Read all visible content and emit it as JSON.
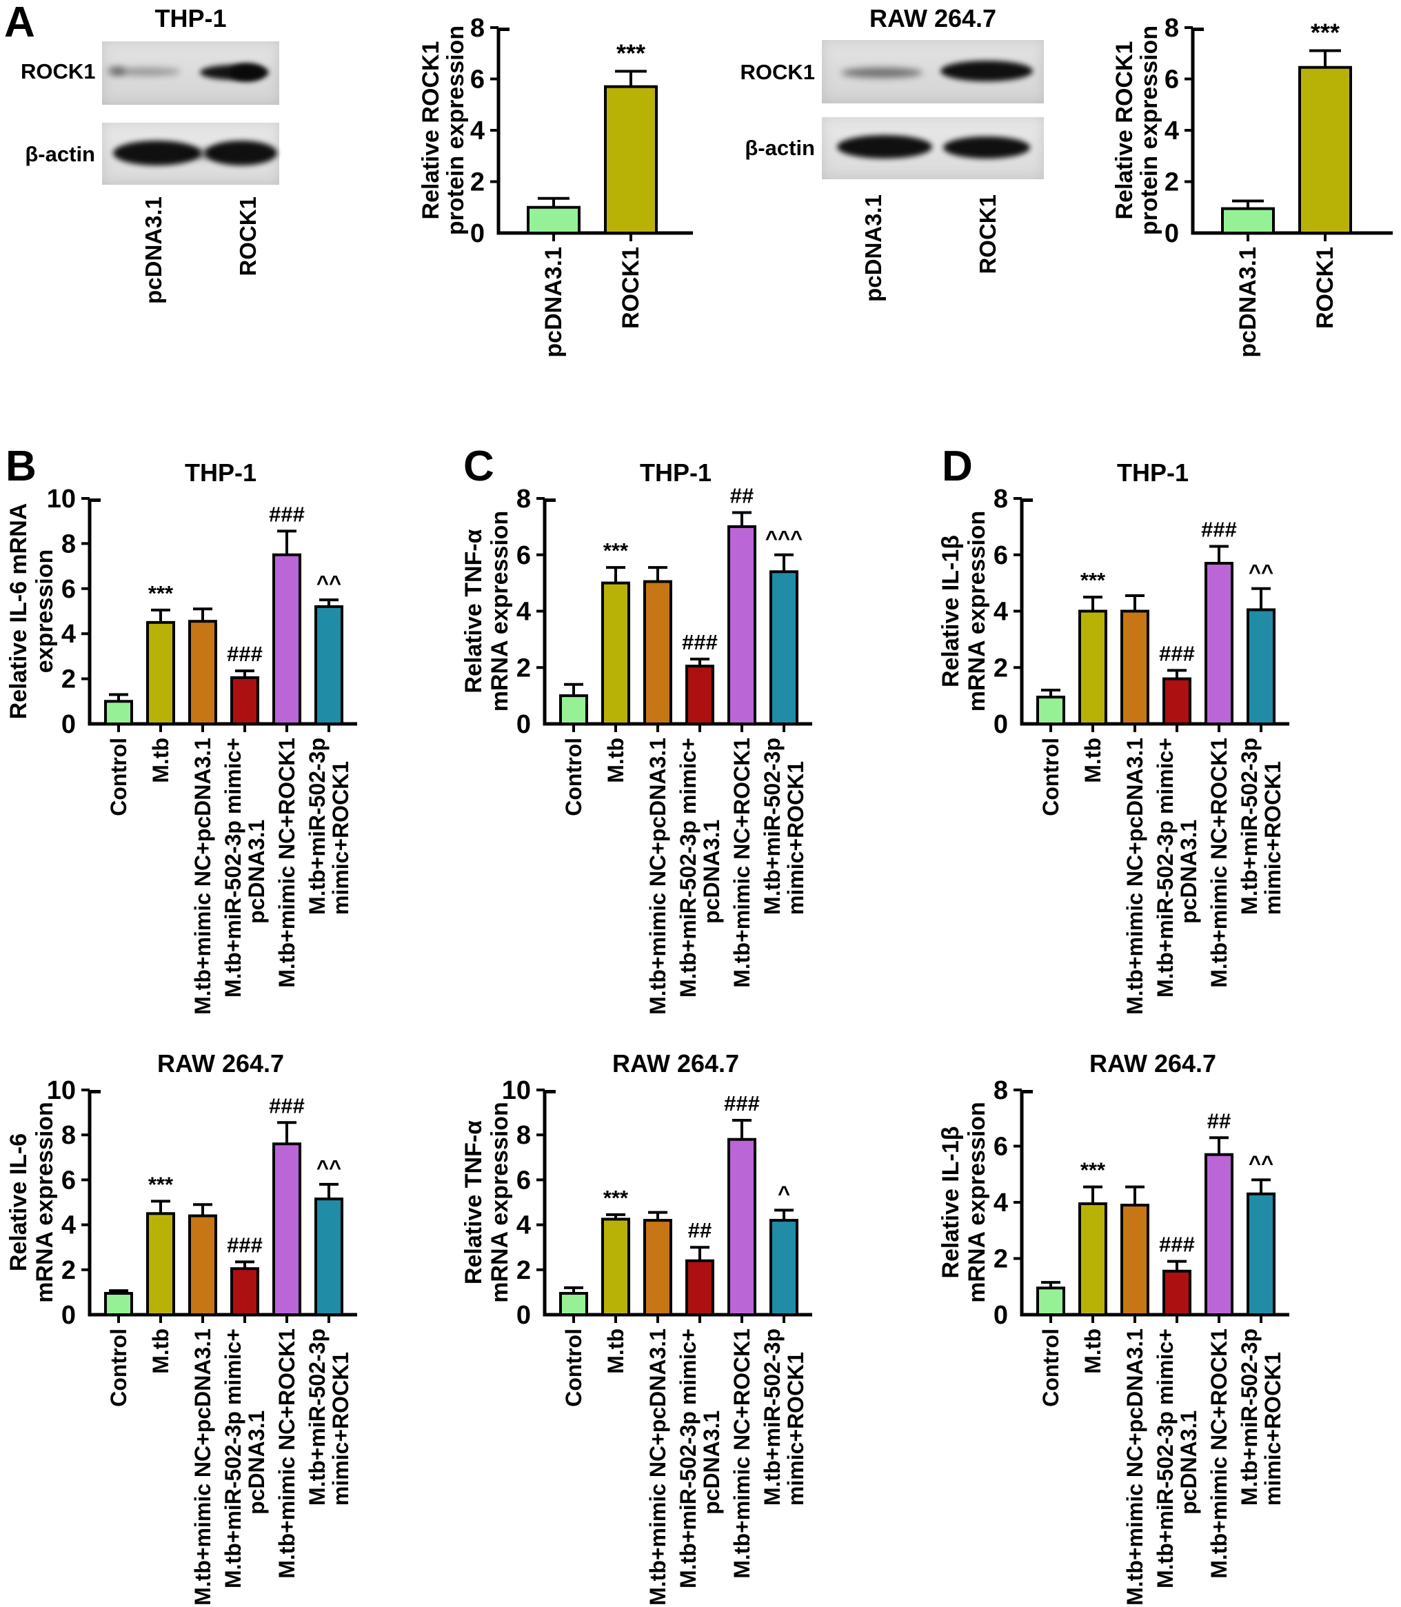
{
  "panels": {
    "a": {
      "label": "A",
      "groups": [
        {
          "title": "THP-1",
          "rows": [
            "ROCK1",
            "β-actin"
          ],
          "lanes": [
            "pcDNA3.1",
            "ROCK1"
          ]
        },
        {
          "title": "RAW 264.7",
          "rows": [
            "ROCK1",
            "β-actin"
          ],
          "lanes": [
            "pcDNA3.1",
            "ROCK1"
          ]
        }
      ]
    },
    "b": {
      "label": "B"
    },
    "c": {
      "label": "C"
    },
    "d": {
      "label": "D"
    }
  },
  "palette": {
    "control_green": "#96f196",
    "mtb_olive": "#b8b206",
    "mimic_nc_orange": "#c67614",
    "mir502_red": "#ac1010",
    "nc_rock1_purple": "#bb66d7",
    "mir502_rock1_teal": "#208ca6"
  },
  "chart_data": [
    {
      "id": "rock1-protein-thp1",
      "type": "bar",
      "title": "",
      "ylabel": "Relative ROCK1 protein expression",
      "ylabel_lines": [
        "Relative ROCK1",
        "protein expression"
      ],
      "categories": [
        "pcDNA3.1",
        "ROCK1"
      ],
      "values": [
        1.0,
        5.7
      ],
      "errors": [
        0.35,
        0.6
      ],
      "annotations": [
        "",
        "***"
      ],
      "colors": [
        "#96f196",
        "#b8b206"
      ],
      "ylim": [
        0,
        8
      ],
      "yticks": [
        0,
        2,
        4,
        6,
        8
      ]
    },
    {
      "id": "rock1-protein-raw",
      "type": "bar",
      "title": "",
      "ylabel": "Relative ROCK1 protein expression",
      "ylabel_lines": [
        "Relative ROCK1",
        "protein expression"
      ],
      "categories": [
        "pcDNA3.1",
        "ROCK1"
      ],
      "values": [
        0.95,
        6.45
      ],
      "errors": [
        0.3,
        0.65
      ],
      "annotations": [
        "",
        "***"
      ],
      "colors": [
        "#96f196",
        "#b8b206"
      ],
      "ylim": [
        0,
        8
      ],
      "yticks": [
        0,
        2,
        4,
        6,
        8
      ]
    },
    {
      "id": "il6-mrna-thp1",
      "type": "bar",
      "title": "THP-1",
      "ylabel": "Relative IL-6 mRNA expression",
      "ylabel_lines": [
        "Relative IL-6 mRNA",
        "expression"
      ],
      "categories": [
        "Control",
        "M.tb",
        "M.tb+mimic NC+pcDNA3.1",
        "M.tb+miR-502-3p mimic+\npcDNA3.1",
        "M.tb+mimic NC+ROCK1",
        "M.tb+miR-502-3p\nmimic+ROCK1"
      ],
      "values": [
        1.0,
        4.5,
        4.55,
        2.05,
        7.5,
        5.2
      ],
      "errors": [
        0.3,
        0.55,
        0.55,
        0.3,
        1.05,
        0.3
      ],
      "annotations": [
        "",
        "***",
        "",
        "###",
        "###",
        "^^"
      ],
      "colors": [
        "#96f196",
        "#b8b206",
        "#c67614",
        "#ac1010",
        "#bb66d7",
        "#208ca6"
      ],
      "ylim": [
        0,
        10
      ],
      "yticks": [
        0,
        2,
        4,
        6,
        8,
        10
      ]
    },
    {
      "id": "tnfa-mrna-thp1",
      "type": "bar",
      "title": "THP-1",
      "ylabel": "Relative TNF-α mRNA expression",
      "ylabel_lines": [
        "Relative TNF-α",
        "mRNA expression"
      ],
      "categories": [
        "Control",
        "M.tb",
        "M.tb+mimic NC+pcDNA3.1",
        "M.tb+miR-502-3p mimic+\npcDNA3.1",
        "M.tb+mimic NC+ROCK1",
        "M.tb+miR-502-3p\nmimic+ROCK1"
      ],
      "values": [
        1.0,
        5.0,
        5.05,
        2.05,
        7.0,
        5.4
      ],
      "errors": [
        0.4,
        0.55,
        0.5,
        0.25,
        0.5,
        0.6
      ],
      "annotations": [
        "",
        "***",
        "",
        "###",
        "##",
        "^^^"
      ],
      "colors": [
        "#96f196",
        "#b8b206",
        "#c67614",
        "#ac1010",
        "#bb66d7",
        "#208ca6"
      ],
      "ylim": [
        0,
        8
      ],
      "yticks": [
        0,
        2,
        4,
        6,
        8
      ]
    },
    {
      "id": "il1b-mrna-thp1",
      "type": "bar",
      "title": "THP-1",
      "ylabel": "Relative IL-1β mRNA expression",
      "ylabel_lines": [
        "Relative IL-1β",
        "mRNA expression"
      ],
      "categories": [
        "Control",
        "M.tb",
        "M.tb+mimic NC+pcDNA3.1",
        "M.tb+miR-502-3p mimic+\npcDNA3.1",
        "M.tb+mimic NC+ROCK1",
        "M.tb+miR-502-3p\nmimic+ROCK1"
      ],
      "values": [
        0.95,
        4.0,
        4.0,
        1.6,
        5.7,
        4.05
      ],
      "errors": [
        0.25,
        0.5,
        0.55,
        0.3,
        0.6,
        0.75
      ],
      "annotations": [
        "",
        "***",
        "",
        "###",
        "###",
        "^^"
      ],
      "colors": [
        "#96f196",
        "#b8b206",
        "#c67614",
        "#ac1010",
        "#bb66d7",
        "#208ca6"
      ],
      "ylim": [
        0,
        8
      ],
      "yticks": [
        0,
        2,
        4,
        6,
        8
      ]
    },
    {
      "id": "il6-mrna-raw",
      "type": "bar",
      "title": "RAW 264.7",
      "ylabel": "Relative IL-6 mRNA expression",
      "ylabel_lines": [
        "Relative IL-6",
        "mRNA expression"
      ],
      "categories": [
        "Control",
        "M.tb",
        "M.tb+mimic NC+pcDNA3.1",
        "M.tb+miR-502-3p mimic+\npcDNA3.1",
        "M.tb+mimic NC+ROCK1",
        "M.tb+miR-502-3p\nmimic+ROCK1"
      ],
      "values": [
        0.95,
        4.5,
        4.4,
        2.05,
        7.6,
        5.15
      ],
      "errors": [
        0.12,
        0.55,
        0.5,
        0.3,
        0.95,
        0.65
      ],
      "annotations": [
        "",
        "***",
        "",
        "###",
        "###",
        "^^"
      ],
      "colors": [
        "#96f196",
        "#b8b206",
        "#c67614",
        "#ac1010",
        "#bb66d7",
        "#208ca6"
      ],
      "ylim": [
        0,
        10
      ],
      "yticks": [
        0,
        2,
        4,
        6,
        8,
        10
      ]
    },
    {
      "id": "tnfa-mrna-raw",
      "type": "bar",
      "title": "RAW 264.7",
      "ylabel": "Relative TNF-α mRNA expression",
      "ylabel_lines": [
        "Relative TNF-α",
        "mRNA expression"
      ],
      "categories": [
        "Control",
        "M.tb",
        "M.tb+mimic NC+pcDNA3.1",
        "M.tb+miR-502-3p mimic+\npcDNA3.1",
        "M.tb+mimic NC+ROCK1",
        "M.tb+miR-502-3p\nmimic+ROCK1"
      ],
      "values": [
        0.95,
        4.25,
        4.2,
        2.4,
        7.8,
        4.2
      ],
      "errors": [
        0.25,
        0.2,
        0.35,
        0.6,
        0.85,
        0.45
      ],
      "annotations": [
        "",
        "***",
        "",
        "##",
        "###",
        "^"
      ],
      "colors": [
        "#96f196",
        "#b8b206",
        "#c67614",
        "#ac1010",
        "#bb66d7",
        "#208ca6"
      ],
      "ylim": [
        0,
        10
      ],
      "yticks": [
        0,
        2,
        4,
        6,
        8,
        10
      ]
    },
    {
      "id": "il1b-mrna-raw",
      "type": "bar",
      "title": "RAW 264.7",
      "ylabel": "Relative IL-1β mRNA expression",
      "ylabel_lines": [
        "Relative IL-1β",
        "mRNA expression"
      ],
      "categories": [
        "Control",
        "M.tb",
        "M.tb+mimic NC+pcDNA3.1",
        "M.tb+miR-502-3p mimic+\npcDNA3.1",
        "M.tb+mimic NC+ROCK1",
        "M.tb+miR-502-3p\nmimic+ROCK1"
      ],
      "values": [
        0.95,
        3.95,
        3.9,
        1.55,
        5.7,
        4.3
      ],
      "errors": [
        0.2,
        0.6,
        0.65,
        0.35,
        0.6,
        0.5
      ],
      "annotations": [
        "",
        "***",
        "",
        "###",
        "##",
        "^^"
      ],
      "colors": [
        "#96f196",
        "#b8b206",
        "#c67614",
        "#ac1010",
        "#bb66d7",
        "#208ca6"
      ],
      "ylim": [
        0,
        8
      ],
      "yticks": [
        0,
        2,
        4,
        6,
        8
      ]
    }
  ]
}
